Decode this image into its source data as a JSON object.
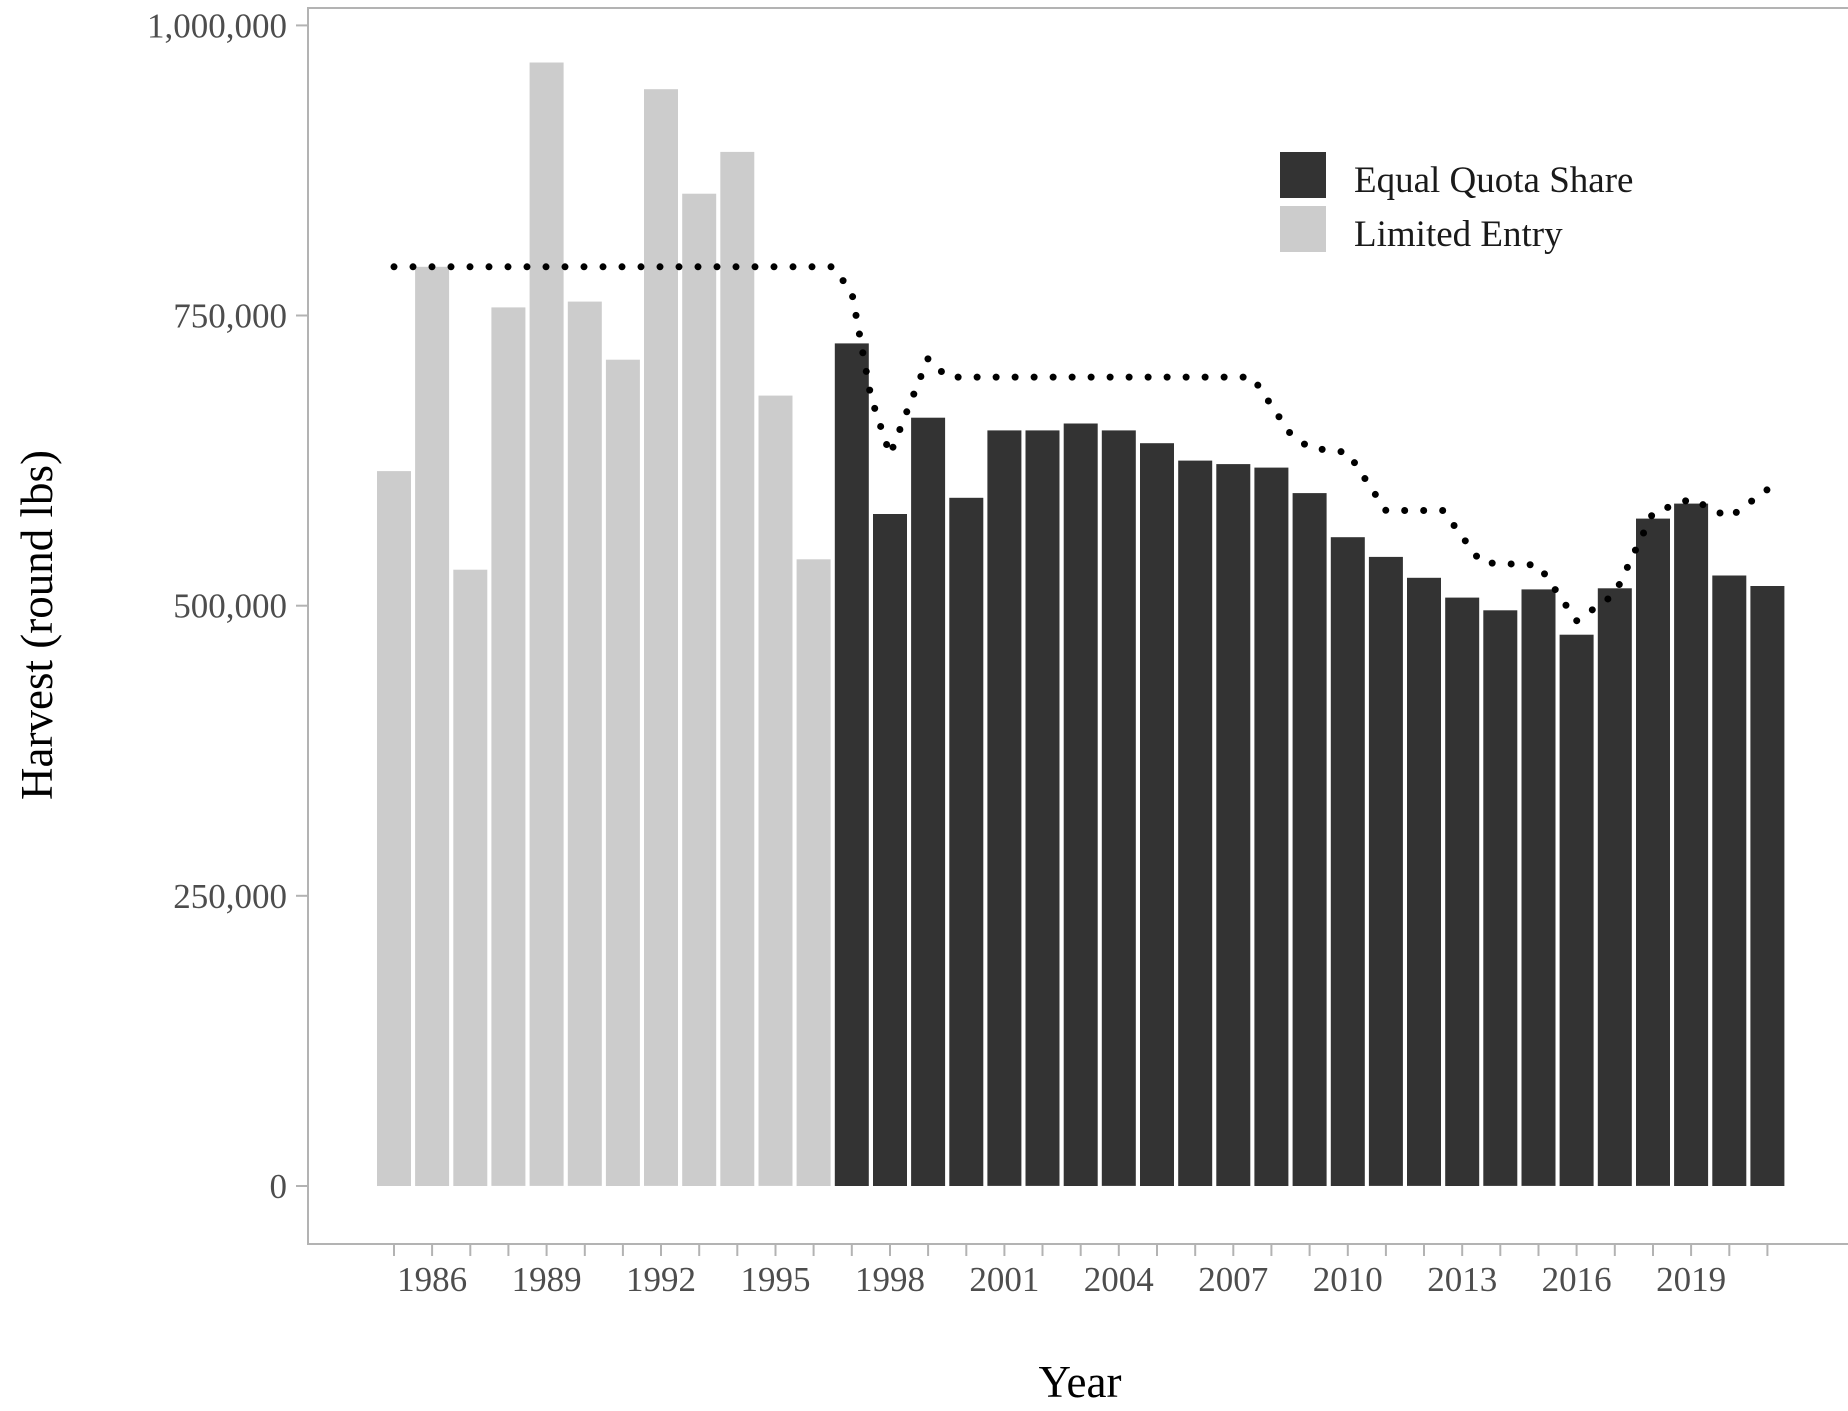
{
  "chart_data": {
    "type": "bar",
    "title": "",
    "xlabel": "Year",
    "ylabel": "Harvest (round lbs)",
    "ylim": [
      -50000,
      1015000
    ],
    "y_ticks": [
      0,
      250000,
      500000,
      750000,
      1000000
    ],
    "y_tick_labels": [
      "0",
      "250,000",
      "500,000",
      "750,000",
      "1,000,000"
    ],
    "x_tick_years": [
      1986,
      1989,
      1992,
      1995,
      1998,
      2001,
      2004,
      2007,
      2010,
      2013,
      2016,
      2019
    ],
    "x_tick_labels": [
      "1986",
      "1989",
      "1992",
      "1995",
      "1998",
      "2001",
      "2004",
      "2007",
      "2010",
      "2013",
      "2016",
      "2019"
    ],
    "grid": false,
    "legend_position": "top-right",
    "colors": {
      "equal_quota_share": "#333333",
      "limited_entry": "#cccccc",
      "quota_line": "#000000"
    },
    "legend": [
      {
        "key": "equal_quota_share",
        "label": "Equal Quota Share"
      },
      {
        "key": "limited_entry",
        "label": "Limited Entry"
      }
    ],
    "bars": [
      {
        "year": 1985,
        "value": 616000,
        "group": "limited_entry"
      },
      {
        "year": 1986,
        "value": 792000,
        "group": "limited_entry"
      },
      {
        "year": 1987,
        "value": 531000,
        "group": "limited_entry"
      },
      {
        "year": 1988,
        "value": 757000,
        "group": "limited_entry"
      },
      {
        "year": 1989,
        "value": 968000,
        "group": "limited_entry"
      },
      {
        "year": 1990,
        "value": 762000,
        "group": "limited_entry"
      },
      {
        "year": 1991,
        "value": 712000,
        "group": "limited_entry"
      },
      {
        "year": 1992,
        "value": 945000,
        "group": "limited_entry"
      },
      {
        "year": 1993,
        "value": 855000,
        "group": "limited_entry"
      },
      {
        "year": 1994,
        "value": 891000,
        "group": "limited_entry"
      },
      {
        "year": 1995,
        "value": 681000,
        "group": "limited_entry"
      },
      {
        "year": 1996,
        "value": 540000,
        "group": "limited_entry"
      },
      {
        "year": 1997,
        "value": 726000,
        "group": "equal_quota_share"
      },
      {
        "year": 1998,
        "value": 579000,
        "group": "equal_quota_share"
      },
      {
        "year": 1999,
        "value": 662000,
        "group": "equal_quota_share"
      },
      {
        "year": 2000,
        "value": 593000,
        "group": "equal_quota_share"
      },
      {
        "year": 2001,
        "value": 651000,
        "group": "equal_quota_share"
      },
      {
        "year": 2002,
        "value": 651000,
        "group": "equal_quota_share"
      },
      {
        "year": 2003,
        "value": 657000,
        "group": "equal_quota_share"
      },
      {
        "year": 2004,
        "value": 651000,
        "group": "equal_quota_share"
      },
      {
        "year": 2005,
        "value": 640000,
        "group": "equal_quota_share"
      },
      {
        "year": 2006,
        "value": 625000,
        "group": "equal_quota_share"
      },
      {
        "year": 2007,
        "value": 622000,
        "group": "equal_quota_share"
      },
      {
        "year": 2008,
        "value": 619000,
        "group": "equal_quota_share"
      },
      {
        "year": 2009,
        "value": 597000,
        "group": "equal_quota_share"
      },
      {
        "year": 2010,
        "value": 559000,
        "group": "equal_quota_share"
      },
      {
        "year": 2011,
        "value": 542000,
        "group": "equal_quota_share"
      },
      {
        "year": 2012,
        "value": 524000,
        "group": "equal_quota_share"
      },
      {
        "year": 2013,
        "value": 507000,
        "group": "equal_quota_share"
      },
      {
        "year": 2014,
        "value": 496000,
        "group": "equal_quota_share"
      },
      {
        "year": 2015,
        "value": 514000,
        "group": "equal_quota_share"
      },
      {
        "year": 2016,
        "value": 475000,
        "group": "equal_quota_share"
      },
      {
        "year": 2017,
        "value": 515000,
        "group": "equal_quota_share"
      },
      {
        "year": 2018,
        "value": 575000,
        "group": "equal_quota_share"
      },
      {
        "year": 2019,
        "value": 588000,
        "group": "equal_quota_share"
      },
      {
        "year": 2020,
        "value": 526000,
        "group": "equal_quota_share"
      },
      {
        "year": 2021,
        "value": 517000,
        "group": "equal_quota_share"
      }
    ],
    "quota_line": {
      "style": "dotted",
      "points": [
        {
          "year": 1985,
          "value": 792000
        },
        {
          "year": 1996.5,
          "value": 792000
        },
        {
          "year": 1997,
          "value": 770000
        },
        {
          "year": 1997.5,
          "value": 680000
        },
        {
          "year": 1998,
          "value": 630000
        },
        {
          "year": 1998.5,
          "value": 672000
        },
        {
          "year": 1999,
          "value": 713000
        },
        {
          "year": 1999.5,
          "value": 697000
        },
        {
          "year": 2007.5,
          "value": 697000
        },
        {
          "year": 2008.5,
          "value": 648000
        },
        {
          "year": 2009,
          "value": 636000
        },
        {
          "year": 2010,
          "value": 632000
        },
        {
          "year": 2011,
          "value": 582000
        },
        {
          "year": 2012.5,
          "value": 582000
        },
        {
          "year": 2013.5,
          "value": 537000
        },
        {
          "year": 2015,
          "value": 535000
        },
        {
          "year": 2016,
          "value": 487000
        },
        {
          "year": 2017,
          "value": 510000
        },
        {
          "year": 2018,
          "value": 580000
        },
        {
          "year": 2019,
          "value": 592000
        },
        {
          "year": 2020,
          "value": 576000
        },
        {
          "year": 2021,
          "value": 600000
        }
      ]
    }
  }
}
